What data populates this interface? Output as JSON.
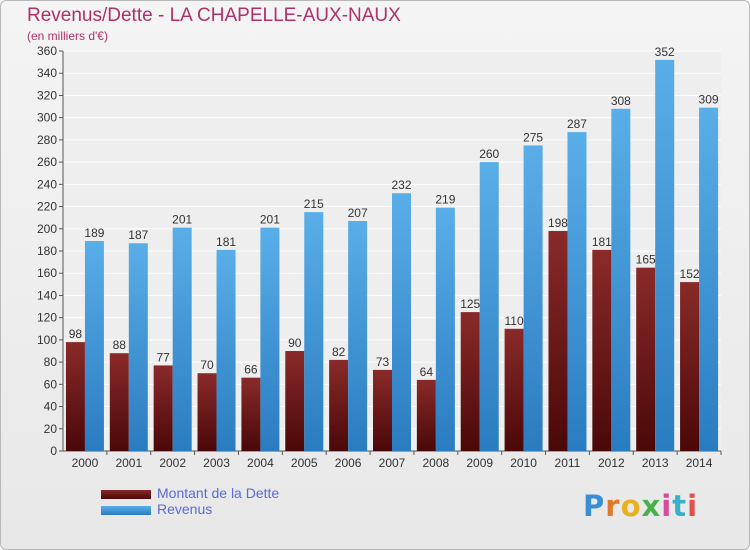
{
  "title": "Revenus/Dette - LA CHAPELLE-AUX-NAUX",
  "subtitle": "(en milliers d'€)",
  "logo_text": "Proxiti",
  "colors": {
    "debt": "#7a1a1a",
    "revenue": "#3c9be0",
    "title": "#b0306a",
    "legend_text": "#5a6ad8"
  },
  "chart_data": {
    "type": "bar",
    "categories": [
      "2000",
      "2001",
      "2002",
      "2003",
      "2004",
      "2005",
      "2006",
      "2007",
      "2008",
      "2009",
      "2010",
      "2011",
      "2012",
      "2013",
      "2014"
    ],
    "series": [
      {
        "name": "Montant de la Dette",
        "values": [
          98,
          88,
          77,
          70,
          66,
          90,
          82,
          73,
          64,
          125,
          110,
          198,
          181,
          165,
          152
        ]
      },
      {
        "name": "Revenus",
        "values": [
          189,
          187,
          201,
          181,
          201,
          215,
          207,
          232,
          219,
          260,
          275,
          287,
          308,
          352,
          309
        ]
      }
    ],
    "ylim": [
      0,
      360
    ],
    "yticks": [
      0,
      20,
      40,
      60,
      80,
      100,
      120,
      140,
      160,
      180,
      200,
      220,
      240,
      260,
      280,
      300,
      320,
      340,
      360
    ],
    "grid": true,
    "legend_position": "bottom-left"
  }
}
